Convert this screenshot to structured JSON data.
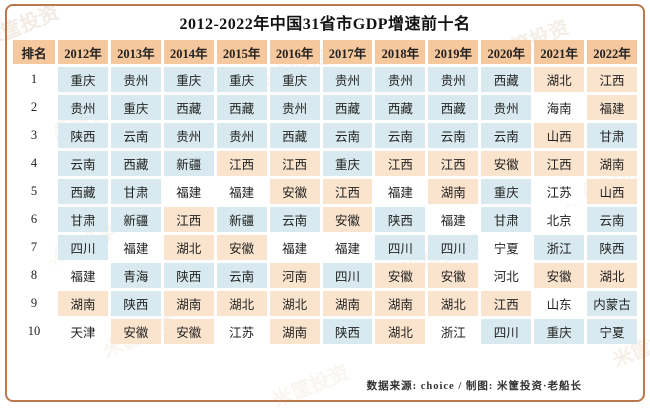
{
  "title": "2012-2022年中国31省市GDP增速前十名",
  "watermark": "米筐投资",
  "footer": {
    "text": "数据来源: choice / 制图: 米筐投资·老船长"
  },
  "colors": {
    "header_band": "#f6c89d",
    "blue_cell": "#d8eaef",
    "orange_cell": "#fbe4cd",
    "white_cell": "#ffffff",
    "border": "#b9794d"
  },
  "chart_data": {
    "type": "table",
    "title": "2012-2022年中国31省市GDP增速前十名",
    "columns": [
      "排名",
      "2012年",
      "2013年",
      "2014年",
      "2015年",
      "2016年",
      "2017年",
      "2018年",
      "2019年",
      "2020年",
      "2021年",
      "2022年"
    ],
    "rows": [
      {
        "rank": "1",
        "cells": [
          {
            "t": "重庆",
            "c": "blue"
          },
          {
            "t": "贵州",
            "c": "blue"
          },
          {
            "t": "重庆",
            "c": "blue"
          },
          {
            "t": "重庆",
            "c": "blue"
          },
          {
            "t": "重庆",
            "c": "blue"
          },
          {
            "t": "贵州",
            "c": "blue"
          },
          {
            "t": "贵州",
            "c": "blue"
          },
          {
            "t": "贵州",
            "c": "blue"
          },
          {
            "t": "西藏",
            "c": "blue"
          },
          {
            "t": "湖北",
            "c": "orange"
          },
          {
            "t": "江西",
            "c": "orange"
          }
        ]
      },
      {
        "rank": "2",
        "cells": [
          {
            "t": "贵州",
            "c": "blue"
          },
          {
            "t": "重庆",
            "c": "blue"
          },
          {
            "t": "西藏",
            "c": "blue"
          },
          {
            "t": "西藏",
            "c": "blue"
          },
          {
            "t": "贵州",
            "c": "blue"
          },
          {
            "t": "西藏",
            "c": "blue"
          },
          {
            "t": "西藏",
            "c": "blue"
          },
          {
            "t": "西藏",
            "c": "blue"
          },
          {
            "t": "贵州",
            "c": "blue"
          },
          {
            "t": "海南",
            "c": "white"
          },
          {
            "t": "福建",
            "c": "orange"
          }
        ]
      },
      {
        "rank": "3",
        "cells": [
          {
            "t": "陕西",
            "c": "blue"
          },
          {
            "t": "云南",
            "c": "blue"
          },
          {
            "t": "贵州",
            "c": "blue"
          },
          {
            "t": "贵州",
            "c": "blue"
          },
          {
            "t": "西藏",
            "c": "blue"
          },
          {
            "t": "云南",
            "c": "blue"
          },
          {
            "t": "云南",
            "c": "blue"
          },
          {
            "t": "云南",
            "c": "blue"
          },
          {
            "t": "云南",
            "c": "blue"
          },
          {
            "t": "山西",
            "c": "orange"
          },
          {
            "t": "甘肃",
            "c": "blue"
          }
        ]
      },
      {
        "rank": "4",
        "cells": [
          {
            "t": "云南",
            "c": "blue"
          },
          {
            "t": "西藏",
            "c": "blue"
          },
          {
            "t": "新疆",
            "c": "blue"
          },
          {
            "t": "江西",
            "c": "orange"
          },
          {
            "t": "江西",
            "c": "orange"
          },
          {
            "t": "重庆",
            "c": "blue"
          },
          {
            "t": "江西",
            "c": "orange"
          },
          {
            "t": "江西",
            "c": "orange"
          },
          {
            "t": "安徽",
            "c": "orange"
          },
          {
            "t": "江西",
            "c": "orange"
          },
          {
            "t": "湖南",
            "c": "orange"
          }
        ]
      },
      {
        "rank": "5",
        "cells": [
          {
            "t": "西藏",
            "c": "blue"
          },
          {
            "t": "甘肃",
            "c": "blue"
          },
          {
            "t": "福建",
            "c": "white"
          },
          {
            "t": "福建",
            "c": "white"
          },
          {
            "t": "安徽",
            "c": "orange"
          },
          {
            "t": "江西",
            "c": "orange"
          },
          {
            "t": "福建",
            "c": "white"
          },
          {
            "t": "湖南",
            "c": "orange"
          },
          {
            "t": "重庆",
            "c": "blue"
          },
          {
            "t": "江苏",
            "c": "white"
          },
          {
            "t": "山西",
            "c": "orange"
          }
        ]
      },
      {
        "rank": "6",
        "cells": [
          {
            "t": "甘肃",
            "c": "blue"
          },
          {
            "t": "新疆",
            "c": "blue"
          },
          {
            "t": "江西",
            "c": "orange"
          },
          {
            "t": "新疆",
            "c": "blue"
          },
          {
            "t": "云南",
            "c": "blue"
          },
          {
            "t": "安徽",
            "c": "orange"
          },
          {
            "t": "陕西",
            "c": "blue"
          },
          {
            "t": "福建",
            "c": "white"
          },
          {
            "t": "甘肃",
            "c": "blue"
          },
          {
            "t": "北京",
            "c": "white"
          },
          {
            "t": "云南",
            "c": "blue"
          }
        ]
      },
      {
        "rank": "7",
        "cells": [
          {
            "t": "四川",
            "c": "blue"
          },
          {
            "t": "福建",
            "c": "white"
          },
          {
            "t": "湖北",
            "c": "orange"
          },
          {
            "t": "安徽",
            "c": "orange"
          },
          {
            "t": "福建",
            "c": "white"
          },
          {
            "t": "福建",
            "c": "white"
          },
          {
            "t": "四川",
            "c": "blue"
          },
          {
            "t": "四川",
            "c": "blue"
          },
          {
            "t": "宁夏",
            "c": "white"
          },
          {
            "t": "浙江",
            "c": "blue"
          },
          {
            "t": "陕西",
            "c": "blue"
          }
        ]
      },
      {
        "rank": "8",
        "cells": [
          {
            "t": "福建",
            "c": "white"
          },
          {
            "t": "青海",
            "c": "blue"
          },
          {
            "t": "陕西",
            "c": "blue"
          },
          {
            "t": "云南",
            "c": "blue"
          },
          {
            "t": "河南",
            "c": "orange"
          },
          {
            "t": "四川",
            "c": "blue"
          },
          {
            "t": "安徽",
            "c": "orange"
          },
          {
            "t": "安徽",
            "c": "orange"
          },
          {
            "t": "河北",
            "c": "white"
          },
          {
            "t": "安徽",
            "c": "orange"
          },
          {
            "t": "湖北",
            "c": "orange"
          }
        ]
      },
      {
        "rank": "9",
        "cells": [
          {
            "t": "湖南",
            "c": "orange"
          },
          {
            "t": "陕西",
            "c": "blue"
          },
          {
            "t": "湖南",
            "c": "orange"
          },
          {
            "t": "湖北",
            "c": "orange"
          },
          {
            "t": "湖北",
            "c": "orange"
          },
          {
            "t": "湖南",
            "c": "orange"
          },
          {
            "t": "湖南",
            "c": "orange"
          },
          {
            "t": "湖北",
            "c": "orange"
          },
          {
            "t": "江西",
            "c": "orange"
          },
          {
            "t": "山东",
            "c": "white"
          },
          {
            "t": "内蒙古",
            "c": "blue"
          }
        ]
      },
      {
        "rank": "10",
        "cells": [
          {
            "t": "天津",
            "c": "white"
          },
          {
            "t": "安徽",
            "c": "orange"
          },
          {
            "t": "安徽",
            "c": "orange"
          },
          {
            "t": "江苏",
            "c": "white"
          },
          {
            "t": "湖南",
            "c": "orange"
          },
          {
            "t": "陕西",
            "c": "blue"
          },
          {
            "t": "湖北",
            "c": "orange"
          },
          {
            "t": "浙江",
            "c": "white"
          },
          {
            "t": "四川",
            "c": "blue"
          },
          {
            "t": "重庆",
            "c": "blue"
          },
          {
            "t": "宁夏",
            "c": "blue"
          }
        ]
      }
    ]
  }
}
